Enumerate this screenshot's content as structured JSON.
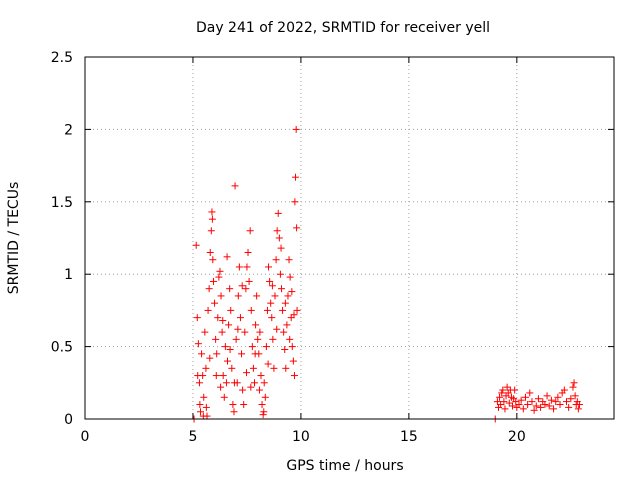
{
  "chart_data": {
    "type": "scatter",
    "title": "Day 241 of 2022, SRMTID for receiver yell",
    "xlabel": "GPS time / hours",
    "ylabel": "SRMTID / TECUs",
    "xlim": [
      0,
      24.5
    ],
    "ylim": [
      0,
      2.5
    ],
    "x_ticks": [
      0,
      5,
      10,
      15,
      20
    ],
    "x_tick_labels": [
      "0",
      "5",
      "10",
      "15",
      "20"
    ],
    "y_ticks": [
      0,
      0.5,
      1,
      1.5,
      2,
      2.5
    ],
    "y_tick_labels": [
      "0",
      "0.5",
      "1",
      "1.5",
      "2",
      "2.5"
    ],
    "grid": true,
    "marker": "+",
    "color": "#ff0000",
    "series": [
      {
        "name": "SRMTID",
        "points": [
          [
            5.05,
            0.0
          ],
          [
            5.15,
            1.2
          ],
          [
            5.2,
            0.7
          ],
          [
            5.25,
            0.52
          ],
          [
            5.3,
            0.25
          ],
          [
            5.32,
            0.1
          ],
          [
            5.35,
            0.05
          ],
          [
            5.4,
            0.45
          ],
          [
            5.45,
            0.3
          ],
          [
            5.5,
            0.15
          ],
          [
            5.55,
            0.6
          ],
          [
            5.6,
            0.35
          ],
          [
            5.62,
            0.08
          ],
          [
            5.65,
            0.02
          ],
          [
            5.7,
            0.75
          ],
          [
            5.75,
            0.9
          ],
          [
            5.8,
            1.15
          ],
          [
            5.85,
            1.3
          ],
          [
            5.88,
            1.43
          ],
          [
            5.9,
            1.38
          ],
          [
            5.92,
            1.1
          ],
          [
            5.95,
            0.95
          ],
          [
            6.0,
            0.8
          ],
          [
            6.05,
            0.55
          ],
          [
            6.1,
            0.45
          ],
          [
            6.15,
            0.7
          ],
          [
            6.2,
            0.98
          ],
          [
            6.25,
            1.02
          ],
          [
            6.3,
            0.85
          ],
          [
            6.35,
            0.6
          ],
          [
            6.4,
            0.3
          ],
          [
            6.45,
            0.15
          ],
          [
            6.5,
            0.5
          ],
          [
            6.55,
            0.25
          ],
          [
            6.6,
            0.4
          ],
          [
            6.65,
            0.65
          ],
          [
            6.7,
            0.9
          ],
          [
            6.75,
            0.75
          ],
          [
            6.8,
            0.35
          ],
          [
            6.85,
            0.1
          ],
          [
            6.9,
            0.05
          ],
          [
            6.95,
            1.61
          ],
          [
            7.0,
            0.55
          ],
          [
            7.05,
            0.25
          ],
          [
            7.1,
            0.85
          ],
          [
            7.15,
            1.05
          ],
          [
            7.2,
            0.7
          ],
          [
            7.25,
            0.45
          ],
          [
            7.3,
            0.2
          ],
          [
            7.35,
            0.1
          ],
          [
            7.4,
            0.6
          ],
          [
            7.45,
            0.9
          ],
          [
            7.5,
            1.05
          ],
          [
            7.55,
            1.15
          ],
          [
            7.6,
            0.95
          ],
          [
            7.65,
            1.3
          ],
          [
            7.7,
            0.75
          ],
          [
            7.75,
            0.5
          ],
          [
            7.8,
            0.35
          ],
          [
            7.85,
            0.25
          ],
          [
            7.9,
            0.65
          ],
          [
            7.95,
            0.85
          ],
          [
            8.0,
            0.55
          ],
          [
            8.05,
            0.45
          ],
          [
            8.1,
            0.6
          ],
          [
            8.15,
            0.3
          ],
          [
            8.2,
            0.1
          ],
          [
            8.25,
            0.03
          ],
          [
            8.3,
            0.25
          ],
          [
            8.35,
            0.15
          ],
          [
            8.4,
            0.5
          ],
          [
            8.45,
            0.75
          ],
          [
            8.5,
            1.05
          ],
          [
            8.55,
            0.95
          ],
          [
            8.6,
            0.8
          ],
          [
            8.65,
            0.7
          ],
          [
            8.7,
            0.55
          ],
          [
            8.75,
            0.35
          ],
          [
            8.8,
            0.85
          ],
          [
            8.85,
            1.1
          ],
          [
            8.9,
            1.3
          ],
          [
            8.95,
            1.42
          ],
          [
            9.0,
            1.25
          ],
          [
            9.05,
            1.0
          ],
          [
            9.1,
            0.9
          ],
          [
            9.15,
            0.75
          ],
          [
            9.2,
            0.6
          ],
          [
            9.25,
            0.48
          ],
          [
            9.3,
            0.35
          ],
          [
            9.35,
            0.65
          ],
          [
            9.4,
            0.85
          ],
          [
            9.45,
            1.1
          ],
          [
            9.5,
            0.98
          ],
          [
            9.55,
            0.7
          ],
          [
            9.6,
            0.5
          ],
          [
            9.65,
            0.4
          ],
          [
            9.7,
            0.3
          ],
          [
            9.72,
            1.5
          ],
          [
            9.75,
            1.67
          ],
          [
            9.78,
            2.0
          ],
          [
            9.8,
            1.32
          ],
          [
            9.82,
            0.75
          ],
          [
            5.22,
            0.3
          ],
          [
            5.48,
            0.02
          ],
          [
            5.78,
            0.42
          ],
          [
            6.08,
            0.3
          ],
          [
            6.28,
            0.22
          ],
          [
            6.38,
            0.68
          ],
          [
            6.58,
            1.12
          ],
          [
            6.72,
            0.48
          ],
          [
            6.92,
            0.25
          ],
          [
            7.08,
            0.62
          ],
          [
            7.28,
            0.92
          ],
          [
            7.48,
            0.32
          ],
          [
            7.68,
            0.22
          ],
          [
            7.88,
            0.45
          ],
          [
            8.08,
            0.2
          ],
          [
            8.28,
            0.05
          ],
          [
            8.48,
            0.38
          ],
          [
            8.68,
            0.92
          ],
          [
            8.88,
            0.62
          ],
          [
            9.08,
            1.18
          ],
          [
            9.28,
            0.8
          ],
          [
            9.48,
            0.55
          ],
          [
            9.68,
            0.72
          ],
          [
            9.58,
            0.88
          ],
          [
            19.0,
            0.0
          ],
          [
            19.1,
            0.12
          ],
          [
            19.15,
            0.08
          ],
          [
            19.2,
            0.15
          ],
          [
            19.25,
            0.1
          ],
          [
            19.3,
            0.18
          ],
          [
            19.35,
            0.2
          ],
          [
            19.4,
            0.12
          ],
          [
            19.45,
            0.07
          ],
          [
            19.5,
            0.16
          ],
          [
            19.55,
            0.22
          ],
          [
            19.6,
            0.18
          ],
          [
            19.65,
            0.11
          ],
          [
            19.7,
            0.2
          ],
          [
            19.75,
            0.15
          ],
          [
            19.8,
            0.09
          ],
          [
            19.85,
            0.14
          ],
          [
            19.9,
            0.2
          ],
          [
            19.95,
            0.12
          ],
          [
            20.0,
            0.08
          ],
          [
            20.1,
            0.1
          ],
          [
            20.2,
            0.13
          ],
          [
            20.3,
            0.07
          ],
          [
            20.4,
            0.15
          ],
          [
            20.5,
            0.1
          ],
          [
            20.6,
            0.18
          ],
          [
            20.7,
            0.12
          ],
          [
            20.8,
            0.06
          ],
          [
            20.9,
            0.09
          ],
          [
            21.0,
            0.14
          ],
          [
            21.1,
            0.08
          ],
          [
            21.2,
            0.12
          ],
          [
            21.3,
            0.1
          ],
          [
            21.4,
            0.16
          ],
          [
            21.5,
            0.09
          ],
          [
            21.6,
            0.13
          ],
          [
            21.7,
            0.07
          ],
          [
            21.8,
            0.12
          ],
          [
            21.9,
            0.15
          ],
          [
            22.0,
            0.1
          ],
          [
            22.1,
            0.18
          ],
          [
            22.2,
            0.2
          ],
          [
            22.3,
            0.12
          ],
          [
            22.4,
            0.08
          ],
          [
            22.5,
            0.14
          ],
          [
            22.6,
            0.22
          ],
          [
            22.65,
            0.25
          ],
          [
            22.7,
            0.16
          ],
          [
            22.75,
            0.1
          ],
          [
            22.8,
            0.12
          ],
          [
            22.85,
            0.07
          ],
          [
            22.9,
            0.1
          ]
        ]
      }
    ]
  }
}
